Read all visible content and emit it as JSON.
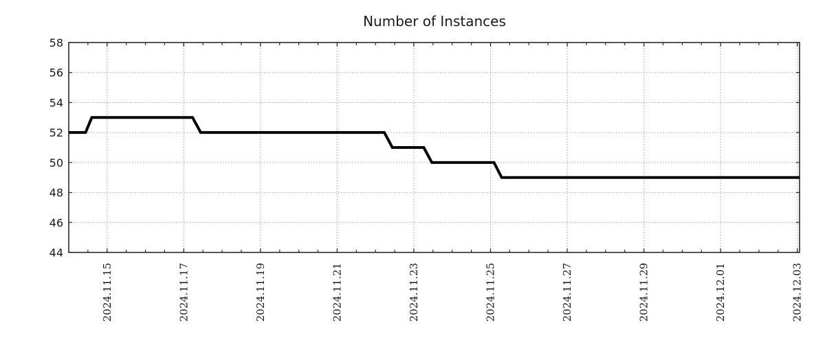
{
  "chart_data": {
    "type": "line",
    "title": "Number of Instances",
    "background_color": "#ffffff",
    "line_color": "#000000",
    "line_width": 4,
    "grid_color": "#a0a0a0",
    "border_color": "#2a2a2a",
    "text_color": "#1a1a1a",
    "grid": "dotted",
    "legend": "none",
    "x_unit": "days since 2024-11-15 00:00",
    "xlim": [
      -1.0,
      18.06
    ],
    "ylim": [
      44,
      58
    ],
    "y_ticks": [
      44,
      46,
      48,
      50,
      52,
      54,
      56,
      58
    ],
    "x_minor_tick_step": 0.5,
    "x_major_ticks": [
      {
        "t": 0,
        "label": "2024.11.15"
      },
      {
        "t": 2,
        "label": "2024.11.17"
      },
      {
        "t": 4,
        "label": "2024.11.19"
      },
      {
        "t": 6,
        "label": "2024.11.21"
      },
      {
        "t": 8,
        "label": "2024.11.23"
      },
      {
        "t": 10,
        "label": "2024.11.25"
      },
      {
        "t": 12,
        "label": "2024.11.27"
      },
      {
        "t": 14,
        "label": "2024.11.29"
      },
      {
        "t": 16,
        "label": "2024.12.01"
      },
      {
        "t": 18,
        "label": "2024.12.03"
      }
    ],
    "series": [
      {
        "name": "instances",
        "color": "#000000",
        "points": [
          [
            -1.0,
            52
          ],
          [
            -0.56,
            52
          ],
          [
            -0.4,
            53
          ],
          [
            2.23,
            53
          ],
          [
            2.44,
            52
          ],
          [
            7.23,
            52
          ],
          [
            7.44,
            51
          ],
          [
            8.26,
            51
          ],
          [
            8.47,
            50
          ],
          [
            10.09,
            50
          ],
          [
            10.29,
            49
          ],
          [
            18.06,
            49
          ]
        ]
      }
    ]
  }
}
